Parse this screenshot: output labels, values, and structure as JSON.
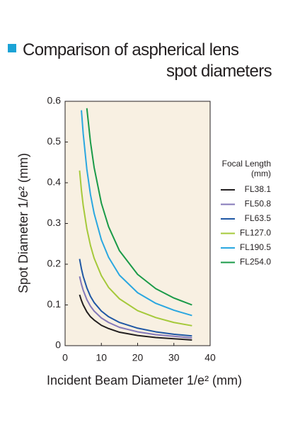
{
  "chart_data": {
    "type": "line",
    "title": "Comparison of aspherical lens spot diameters",
    "x_label": "Incident Beam Diameter  1/e² (mm)",
    "y_label": "Spot Diameter 1/e² (mm)",
    "legend_title": [
      "Focal Length",
      "(mm)"
    ],
    "legend": "right",
    "background": "#f8f0e2",
    "x": [
      4,
      4.5,
      5,
      6,
      7,
      8,
      10,
      12,
      15,
      20,
      25,
      30,
      35
    ],
    "series": [
      {
        "name": "FL38.1",
        "color": "#231f20",
        "values": [
          0.125,
          0.111,
          0.1,
          0.083,
          0.071,
          0.063,
          0.05,
          0.042,
          0.033,
          0.025,
          0.02,
          0.017,
          0.014
        ]
      },
      {
        "name": "FL50.8",
        "color": "#8478b8",
        "values": [
          0.17,
          0.151,
          0.136,
          0.113,
          0.097,
          0.085,
          0.068,
          0.057,
          0.045,
          0.034,
          0.027,
          0.023,
          0.019
        ]
      },
      {
        "name": "FL63.5",
        "color": "#1f57a4",
        "values": [
          0.213,
          0.189,
          0.17,
          0.142,
          0.121,
          0.106,
          0.085,
          0.071,
          0.057,
          0.043,
          0.034,
          0.028,
          0.024
        ]
      },
      {
        "name": "FL127.0",
        "color": "#a5c93a",
        "values": [
          0.43,
          0.382,
          0.344,
          0.287,
          0.246,
          0.215,
          0.172,
          0.143,
          0.115,
          0.086,
          0.069,
          0.057,
          0.049
        ]
      },
      {
        "name": "FL190.5",
        "color": "#2aa7e0",
        "values": [
          null,
          0.578,
          0.52,
          0.433,
          0.371,
          0.325,
          0.26,
          0.217,
          0.173,
          0.13,
          0.104,
          0.087,
          0.074
        ]
      },
      {
        "name": "FL254.0",
        "color": "#1a9a48",
        "values": [
          null,
          null,
          null,
          0.583,
          0.5,
          0.438,
          0.35,
          0.292,
          0.233,
          0.175,
          0.14,
          0.117,
          0.1
        ]
      }
    ],
    "xlim": [
      0,
      40
    ],
    "xticks": [
      0,
      10,
      20,
      30,
      40
    ],
    "ylim": [
      0,
      0.6
    ],
    "yticks": [
      0,
      0.1,
      0.2,
      0.3,
      0.4,
      0.5,
      0.6
    ]
  }
}
